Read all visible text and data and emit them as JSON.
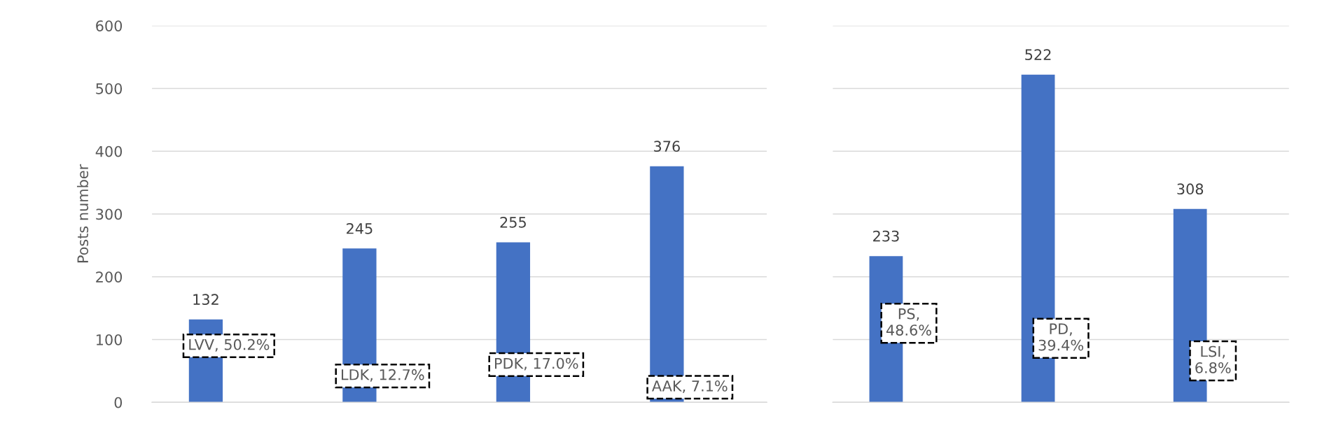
{
  "chart_data": [
    {
      "type": "bar",
      "ylabel": "Posts number",
      "categories": [
        null,
        null,
        null,
        null
      ],
      "values": [
        132,
        245,
        255,
        376
      ],
      "color": "#4472c4",
      "ylim": [
        0,
        600
      ],
      "yticks": [
        0,
        100,
        200,
        300,
        400,
        500,
        600
      ],
      "grid": "y",
      "data_labels": true,
      "annotations": [
        "LVV, 50.2%",
        "LDK, 12.7%",
        "PDK, 17.0%",
        "AAK, 7.1%"
      ]
    },
    {
      "type": "bar",
      "categories": [
        null,
        null,
        null
      ],
      "values": [
        233,
        522,
        308
      ],
      "color": "#4472c4",
      "ylim": [
        0,
        600
      ],
      "yticks": [
        0,
        100,
        200,
        300,
        400,
        500,
        600
      ],
      "grid": "y",
      "data_labels": true,
      "tick_labels": false,
      "annotations": [
        "PS,\n48.6%",
        "PD,\n39.4%",
        "LSI,\n6.8%"
      ]
    }
  ]
}
